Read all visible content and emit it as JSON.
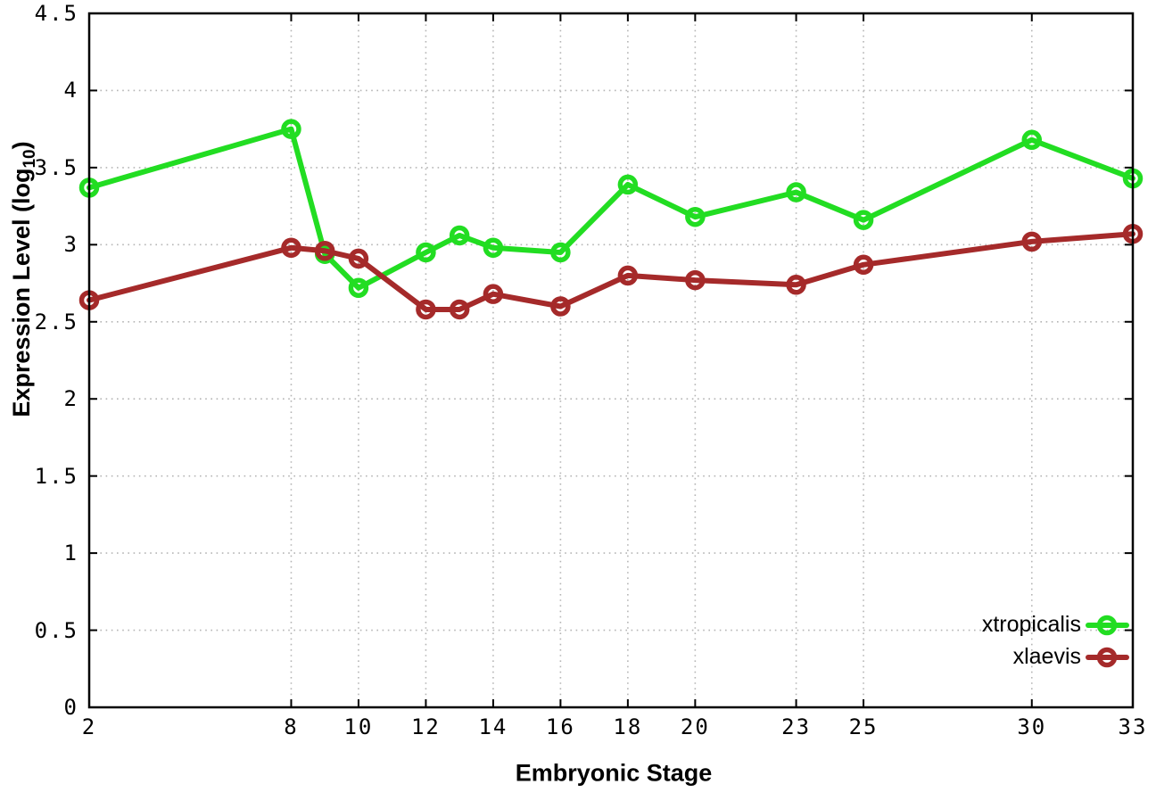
{
  "figure": {
    "background": "#ffffff",
    "border_color": "#000000",
    "grid_color": "#b5b5b5"
  },
  "axes": {
    "x_title": "Embryonic Stage",
    "y_title_prefix": "Expression Level (log",
    "y_title_sub": "10",
    "y_title_suffix": ")"
  },
  "chart_data": {
    "type": "line",
    "title": "",
    "xlabel": "Embryonic Stage",
    "ylabel": "Expression Level (log10)",
    "xlim": [
      2,
      33
    ],
    "ylim": [
      0,
      4.5
    ],
    "grid": true,
    "legend_position": "bottom-right-inside",
    "x": [
      2,
      8,
      9,
      10,
      12,
      13,
      14,
      16,
      18,
      20,
      23,
      25,
      30,
      33
    ],
    "xticks": {
      "values": [
        2,
        8,
        10,
        12,
        14,
        16,
        18,
        20,
        23,
        25,
        30,
        33
      ],
      "labels": [
        "2",
        "8",
        "10",
        "12",
        "14",
        "16",
        "18",
        "20",
        "23",
        "25",
        "30",
        "33"
      ]
    },
    "yticks": {
      "values": [
        0,
        0.5,
        1,
        1.5,
        2,
        2.5,
        3,
        3.5,
        4,
        4.5
      ],
      "labels": [
        "0",
        "0.5",
        "1",
        "1.5",
        "2",
        "2.5",
        "3",
        "3.5",
        "4",
        "4.5"
      ]
    },
    "series": [
      {
        "name": "xtropicalis",
        "color": "#22dd22",
        "marker": "open-circle",
        "values": [
          3.37,
          3.75,
          2.94,
          2.72,
          2.95,
          3.06,
          2.98,
          2.95,
          3.39,
          3.18,
          3.34,
          3.16,
          3.68,
          3.43
        ]
      },
      {
        "name": "xlaevis",
        "color": "#a52a2a",
        "marker": "open-circle",
        "values": [
          2.64,
          2.98,
          2.96,
          2.91,
          2.58,
          2.58,
          2.68,
          2.6,
          2.8,
          2.77,
          2.74,
          2.87,
          3.02,
          3.07
        ]
      }
    ]
  }
}
